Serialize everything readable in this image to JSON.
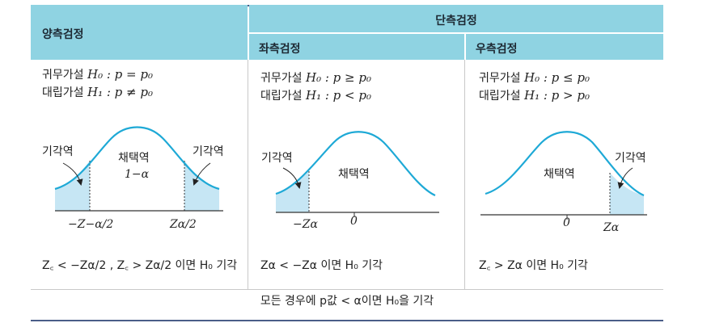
{
  "header": {
    "two_sided": "양측검정",
    "one_sided": "단측검정",
    "left_tail": "좌측검정",
    "right_tail": "우측검정"
  },
  "two_sided": {
    "null_label": "귀무가설",
    "null_expr": "H₀ : p = p₀",
    "alt_label": "대립가설",
    "alt_expr": "H₁ : p ≠ p₀",
    "reject_left": "기각역",
    "reject_right": "기각역",
    "accept": "채택역",
    "accept_prob": "1−α",
    "tick_left": "−Z−α/2",
    "tick_right": "Zα/2",
    "condition": "Z꜀ < −Zα/2 , Z꜀ > Zα/2 이면 H₀ 기각"
  },
  "left_tail": {
    "null_label": "귀무가설",
    "null_expr": "H₀ : p ≥ p₀",
    "alt_label": "대립가설",
    "alt_expr": "H₁ : p < p₀",
    "reject": "기각역",
    "accept": "채택역",
    "tick_left": "−Zα",
    "tick_zero": "0",
    "condition": "Zα < −Zα 이면 H₀ 기각"
  },
  "right_tail": {
    "null_label": "귀무가설",
    "null_expr": "H₀ : p ≤ p₀",
    "alt_label": "대립가설",
    "alt_expr": "H₁ : p > p₀",
    "reject": "기각역",
    "accept": "채택역",
    "tick_zero": "0",
    "tick_right": "Zα",
    "condition": "Z꜀ > Zα 이면 H₀ 기각"
  },
  "footer": "모든 경우에 p값 < α이면 H₀을 기각",
  "colors": {
    "header_bg": "#8fd3e2",
    "curve": "#1ea9d6",
    "shade": "#c6e6f4",
    "rule": "#4a5d88"
  }
}
